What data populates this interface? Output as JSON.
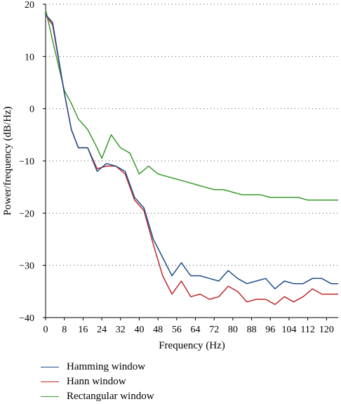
{
  "chart_data": {
    "type": "line",
    "xlabel": "Frequency (Hz)",
    "ylabel": "Power/frequency (dB/Hz)",
    "xlim": [
      0,
      125
    ],
    "ylim": [
      -40,
      20
    ],
    "xticks": [
      0,
      8,
      16,
      24,
      32,
      40,
      48,
      56,
      64,
      72,
      80,
      88,
      96,
      104,
      112,
      120
    ],
    "yticks": [
      20,
      10,
      0,
      -10,
      -20,
      -30,
      -40
    ],
    "grid": "horizontal dotted",
    "legend_position": "bottom-left",
    "series": [
      {
        "name": "Hamming window",
        "color": "#1f4e8c",
        "x": [
          0,
          3,
          8,
          11,
          14,
          18,
          22,
          26,
          30,
          34,
          38,
          42,
          46,
          50,
          54,
          58,
          62,
          66,
          70,
          74,
          78,
          82,
          86,
          90,
          94,
          98,
          102,
          106,
          110,
          114,
          118,
          122,
          125
        ],
        "y": [
          18,
          16.5,
          3,
          -4,
          -7.5,
          -7.5,
          -12,
          -10.5,
          -11,
          -12,
          -17,
          -19,
          -25,
          -28.5,
          -32,
          -29.5,
          -32,
          -32,
          -32.5,
          -33,
          -31,
          -32.5,
          -33.5,
          -33,
          -32.5,
          -34.5,
          -33,
          -33.5,
          -33.5,
          -32.5,
          -32.5,
          -33.5,
          -33.5
        ]
      },
      {
        "name": "Hann window",
        "color": "#c0282d",
        "x": [
          0,
          3,
          8,
          11,
          14,
          18,
          22,
          26,
          30,
          34,
          38,
          42,
          46,
          50,
          54,
          58,
          62,
          66,
          70,
          74,
          78,
          82,
          86,
          90,
          94,
          98,
          102,
          106,
          110,
          114,
          118,
          122,
          125
        ],
        "y": [
          18,
          16,
          3,
          -4,
          -7.5,
          -7.5,
          -11.5,
          -11,
          -11,
          -12.5,
          -17.5,
          -19.5,
          -26,
          -32,
          -35.5,
          -33,
          -36,
          -35.5,
          -36.5,
          -36,
          -34,
          -35,
          -37,
          -36.5,
          -36.5,
          -37.5,
          -36,
          -37,
          -36,
          -34.5,
          -35.5,
          -35.5,
          -35.5
        ]
      },
      {
        "name": "Rectangular window",
        "color": "#3a9a2e",
        "x": [
          0,
          3,
          8,
          11,
          14,
          18,
          22,
          24,
          28,
          32,
          36,
          40,
          44,
          48,
          52,
          56,
          60,
          64,
          68,
          72,
          76,
          80,
          84,
          88,
          92,
          96,
          100,
          104,
          108,
          112,
          116,
          120,
          125
        ],
        "y": [
          19,
          13,
          3.5,
          1,
          -2,
          -4,
          -7.5,
          -9.5,
          -5,
          -7.5,
          -8.5,
          -12.5,
          -11,
          -12.5,
          -13,
          -13.5,
          -14,
          -14.5,
          -15,
          -15.5,
          -15.5,
          -16,
          -16.5,
          -16.5,
          -16.5,
          -17,
          -17,
          -17,
          -17,
          -17.5,
          -17.5,
          -17.5,
          -17.5
        ]
      }
    ]
  }
}
